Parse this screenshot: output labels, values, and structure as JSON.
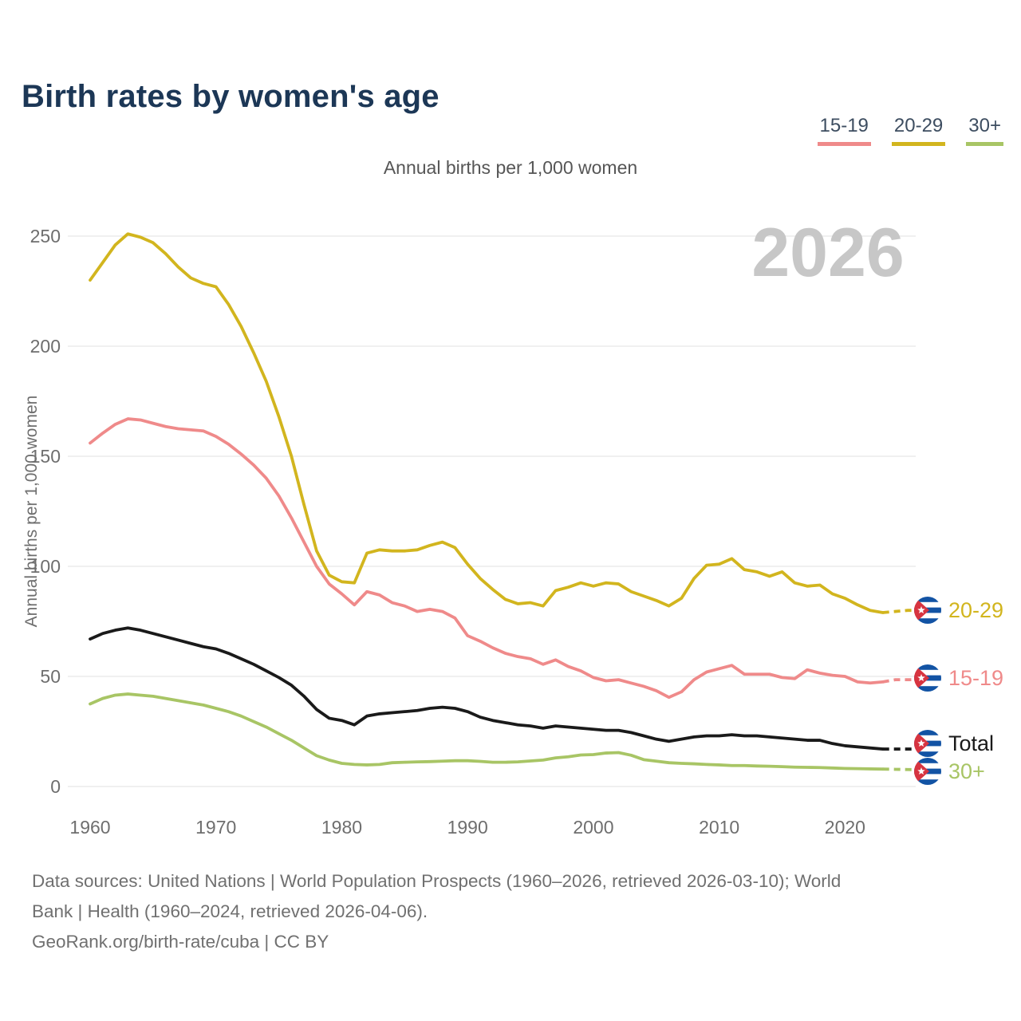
{
  "header": {
    "title": "Birth rates by women's age"
  },
  "chart_data": {
    "type": "line",
    "title": "Birth rates by women's age",
    "subtitle": "Annual births per 1,000 women",
    "ylabel": "Annual births per 1,000 women",
    "watermark_year": "2026",
    "flag_icon": "cuba-flag-icon",
    "x_start": 1960,
    "x_end": 2026,
    "x_solid_until": 2023,
    "ylim": [
      0,
      250
    ],
    "yticks": [
      0,
      50,
      100,
      150,
      200,
      250
    ],
    "xticks": [
      1960,
      1970,
      1980,
      1990,
      2000,
      2010,
      2020
    ],
    "grid": "horizontal",
    "legend_position": "top-right",
    "series": [
      {
        "name": "15-19",
        "color": "#ef8a8a",
        "values": [
          156,
          160.5,
          164.5,
          167,
          166.5,
          165,
          163.5,
          162.5,
          162,
          161.5,
          159,
          155.5,
          151,
          146,
          140,
          132,
          122,
          111,
          100,
          92,
          87.5,
          82.5,
          88.5,
          87,
          83.5,
          82,
          79.5,
          80.5,
          79.5,
          76.5,
          68.5,
          66,
          63,
          60.5,
          59,
          58,
          55.5,
          57.5,
          54.5,
          52.5,
          49.5,
          48,
          48.5,
          47,
          45.5,
          43.5,
          40.5,
          43,
          48.5,
          52,
          53.5,
          55,
          51,
          51,
          51,
          49.5,
          49,
          53,
          51.5,
          50.5,
          50,
          47.5,
          47,
          47.5,
          48.5,
          48.5,
          48.5
        ]
      },
      {
        "name": "20-29",
        "color": "#d2b51e",
        "values": [
          230,
          238,
          246,
          251,
          249.5,
          247,
          242,
          236,
          231,
          228.5,
          227,
          219,
          209,
          197,
          184,
          168,
          150,
          128,
          107,
          96,
          93,
          92.5,
          106,
          107.5,
          107,
          107,
          107.5,
          109.5,
          111,
          108.5,
          101,
          94.5,
          89.5,
          85,
          83,
          83.5,
          82,
          89,
          90.5,
          92.5,
          91,
          92.5,
          92,
          88.5,
          86.5,
          84.5,
          82,
          85.5,
          94.5,
          100.5,
          101,
          103.5,
          98.5,
          97.5,
          95.5,
          97.5,
          92.5,
          91,
          91.5,
          87.5,
          85.5,
          82.5,
          80,
          79,
          79.5,
          80,
          80
        ]
      },
      {
        "name": "30+",
        "color": "#a8c565",
        "values": [
          37.5,
          40,
          41.5,
          42,
          41.5,
          41,
          40,
          39,
          38,
          37,
          35.5,
          34,
          32,
          29.5,
          27,
          24,
          21,
          17.5,
          14,
          12,
          10.5,
          10,
          9.8,
          10,
          10.8,
          11,
          11.2,
          11.3,
          11.5,
          11.7,
          11.7,
          11.4,
          11,
          11,
          11.2,
          11.6,
          12,
          13,
          13.5,
          14.3,
          14.5,
          15.2,
          15.4,
          14.2,
          12.2,
          11.5,
          10.8,
          10.5,
          10.3,
          10,
          9.8,
          9.5,
          9.5,
          9.3,
          9.2,
          9,
          8.8,
          8.7,
          8.6,
          8.4,
          8.2,
          8.1,
          8,
          7.9,
          7.8,
          7.7,
          7.6
        ]
      },
      {
        "name": "Total",
        "color": "#1a1a1a",
        "values": [
          67,
          69.5,
          71,
          72,
          71,
          69.5,
          68,
          66.5,
          65,
          63.5,
          62.5,
          60.5,
          58,
          55.5,
          52.5,
          49.5,
          46,
          41,
          35,
          31,
          30,
          28,
          32,
          33,
          33.5,
          34,
          34.5,
          35.5,
          36,
          35.5,
          34,
          31.5,
          30,
          29,
          28,
          27.5,
          26.5,
          27.5,
          27,
          26.5,
          26,
          25.5,
          25.5,
          24.5,
          23,
          21.5,
          20.5,
          21.5,
          22.5,
          23,
          23,
          23.5,
          23,
          23,
          22.5,
          22,
          21.5,
          21,
          21,
          19.5,
          18.5,
          18,
          17.5,
          17,
          17,
          17,
          17
        ]
      }
    ]
  },
  "footer": {
    "line1": "Data sources: United Nations | World Population Prospects (1960–2026, retrieved 2026-03-10); World",
    "line2": "Bank | Health (1960–2024, retrieved 2026-04-06).",
    "line3": "GeoRank.org/birth-rate/cuba | CC BY"
  }
}
